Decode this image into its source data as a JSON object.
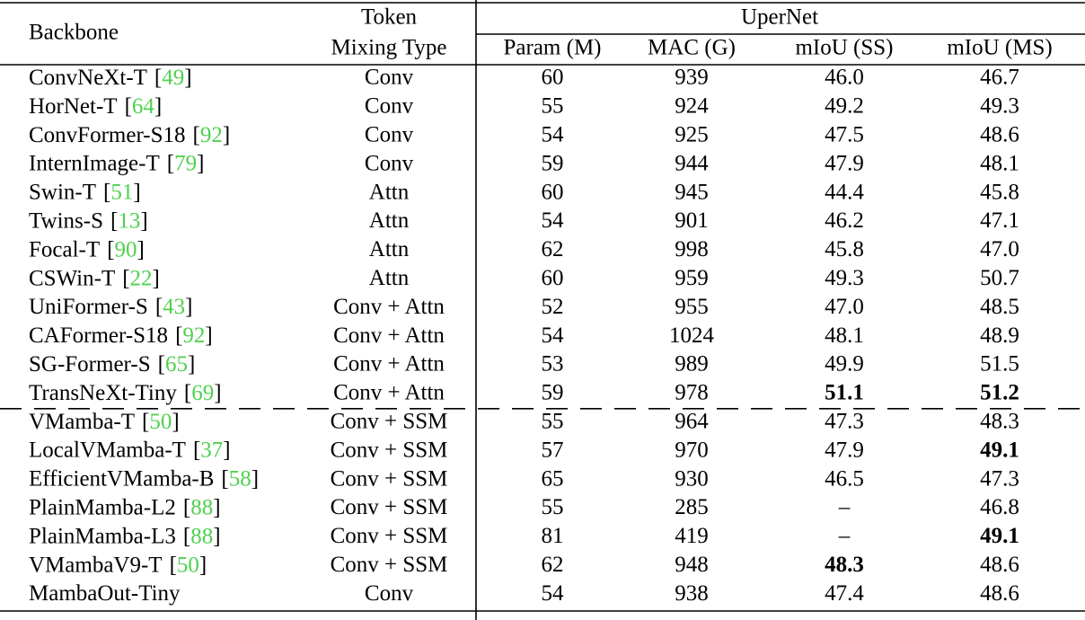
{
  "header": {
    "backbone": "Backbone",
    "token": [
      "Token",
      "Mixing Type"
    ],
    "group": "UperNet",
    "columns": [
      "Param (M)",
      "MAC (G)",
      "mIoU (SS)",
      "mIoU (MS)"
    ]
  },
  "cite_color": "#4fd14f",
  "groups": [
    {
      "rows": [
        {
          "name": "ConvNeXt-T",
          "cite": "[49]",
          "mixing": "Conv",
          "param": "60",
          "mac": "939",
          "ss": "46.0",
          "ms": "46.7",
          "bold": []
        },
        {
          "name": "HorNet-T",
          "cite": "[64]",
          "mixing": "Conv",
          "param": "55",
          "mac": "924",
          "ss": "49.2",
          "ms": "49.3",
          "bold": []
        },
        {
          "name": "ConvFormer-S18",
          "cite": "[92]",
          "mixing": "Conv",
          "param": "54",
          "mac": "925",
          "ss": "47.5",
          "ms": "48.6",
          "bold": []
        },
        {
          "name": "InternImage-T",
          "cite": "[79]",
          "mixing": "Conv",
          "param": "59",
          "mac": "944",
          "ss": "47.9",
          "ms": "48.1",
          "bold": []
        },
        {
          "name": "Swin-T",
          "cite": "[51]",
          "mixing": "Attn",
          "param": "60",
          "mac": "945",
          "ss": "44.4",
          "ms": "45.8",
          "bold": []
        },
        {
          "name": "Twins-S",
          "cite": "[13]",
          "mixing": "Attn",
          "param": "54",
          "mac": "901",
          "ss": "46.2",
          "ms": "47.1",
          "bold": []
        },
        {
          "name": "Focal-T",
          "cite": "[90]",
          "mixing": "Attn",
          "param": "62",
          "mac": "998",
          "ss": "45.8",
          "ms": "47.0",
          "bold": []
        },
        {
          "name": "CSWin-T",
          "cite": "[22]",
          "mixing": "Attn",
          "param": "60",
          "mac": "959",
          "ss": "49.3",
          "ms": "50.7",
          "bold": []
        },
        {
          "name": "UniFormer-S",
          "cite": "[43]",
          "mixing": "Conv + Attn",
          "param": "52",
          "mac": "955",
          "ss": "47.0",
          "ms": "48.5",
          "bold": []
        },
        {
          "name": "CAFormer-S18",
          "cite": "[92]",
          "mixing": "Conv + Attn",
          "param": "54",
          "mac": "1024",
          "ss": "48.1",
          "ms": "48.9",
          "bold": []
        },
        {
          "name": "SG-Former-S",
          "cite": "[65]",
          "mixing": "Conv + Attn",
          "param": "53",
          "mac": "989",
          "ss": "49.9",
          "ms": "51.5",
          "bold": []
        },
        {
          "name": "TransNeXt-Tiny",
          "cite": "[69]",
          "mixing": "Conv + Attn",
          "param": "59",
          "mac": "978",
          "ss": "51.1",
          "ms": "51.2",
          "bold": [
            "ss",
            "ms"
          ]
        }
      ]
    },
    {
      "rows": [
        {
          "name": "VMamba-T",
          "cite": "[50]",
          "mixing": "Conv + SSM",
          "param": "55",
          "mac": "964",
          "ss": "47.3",
          "ms": "48.3",
          "bold": []
        },
        {
          "name": "LocalVMamba-T",
          "cite": "[37]",
          "mixing": "Conv + SSM",
          "param": "57",
          "mac": "970",
          "ss": "47.9",
          "ms": "49.1",
          "bold": [
            "ms"
          ]
        },
        {
          "name": "EfficientVMamba-B",
          "cite": "[58]",
          "mixing": "Conv + SSM",
          "param": "65",
          "mac": "930",
          "ss": "46.5",
          "ms": "47.3",
          "bold": []
        },
        {
          "name": "PlainMamba-L2",
          "cite": "[88]",
          "mixing": "Conv + SSM",
          "param": "55",
          "mac": "285",
          "ss": "–",
          "ms": "46.8",
          "bold": []
        },
        {
          "name": "PlainMamba-L3",
          "cite": "[88]",
          "mixing": "Conv + SSM",
          "param": "81",
          "mac": "419",
          "ss": "–",
          "ms": "49.1",
          "bold": [
            "ms"
          ]
        },
        {
          "name": "VMambaV9-T",
          "cite": "[50]",
          "mixing": "Conv + SSM",
          "param": "62",
          "mac": "948",
          "ss": "48.3",
          "ms": "48.6",
          "bold": [
            "ss"
          ]
        },
        {
          "name": "MambaOut-Tiny",
          "mixing": "Conv",
          "param": "54",
          "mac": "938",
          "ss": "47.4",
          "ms": "48.6",
          "bold": []
        }
      ]
    }
  ]
}
